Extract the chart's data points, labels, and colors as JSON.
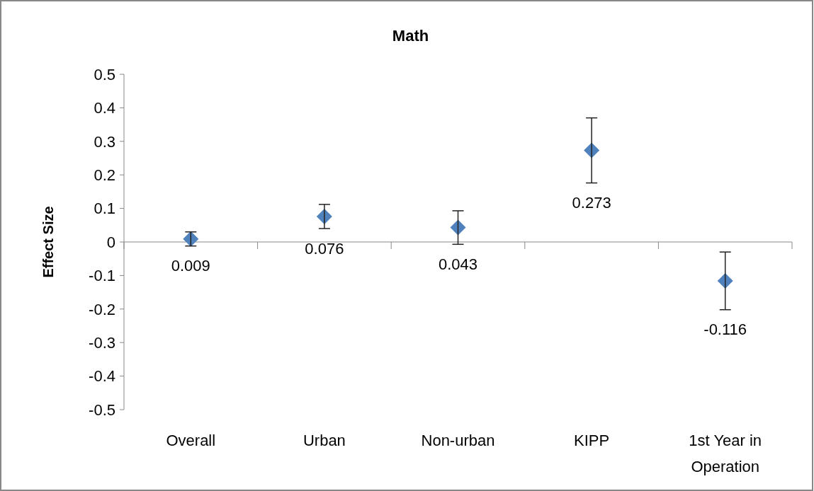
{
  "chart_data": {
    "type": "scatter",
    "title": "Math",
    "ylabel": "Effect Size",
    "categories": [
      "Overall",
      "Urban",
      "Non-urban",
      "KIPP",
      "1st Year in Operation"
    ],
    "values": [
      0.009,
      0.076,
      0.043,
      0.273,
      -0.116
    ],
    "errors": [
      0.021,
      0.036,
      0.05,
      0.097,
      0.086
    ],
    "color": "#4f81bd",
    "marker": "diamond",
    "data_labels": true,
    "ylim": [
      -0.5,
      0.5
    ],
    "yticks": [
      -0.5,
      -0.4,
      -0.3,
      -0.2,
      -0.1,
      0,
      0.1,
      0.2,
      0.3,
      0.4,
      0.5
    ]
  }
}
